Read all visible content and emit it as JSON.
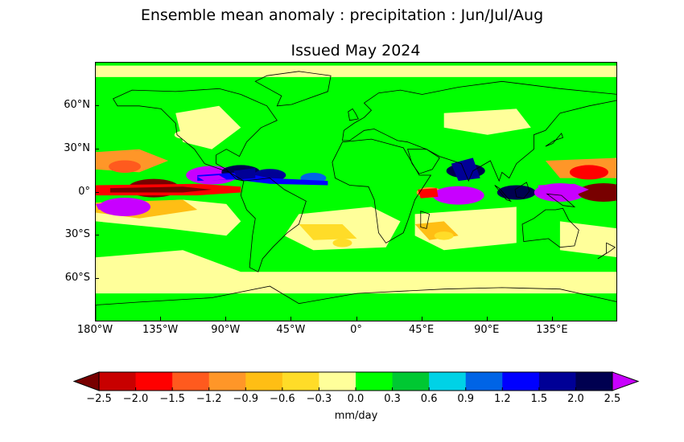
{
  "title": "Ensemble mean anomaly : precipitation : Jun/Jul/Aug",
  "subtitle": "Issued May 2024",
  "map": {
    "lat_ticks": [
      "60°N",
      "30°N",
      "0°",
      "30°S",
      "60°S"
    ],
    "lon_ticks": [
      "180°W",
      "135°W",
      "90°W",
      "45°W",
      "0°",
      "45°E",
      "90°E",
      "135°E"
    ],
    "ocean_color": "#00ff00",
    "coastline_color": "#000000"
  },
  "colorbar": {
    "tick_labels": [
      "−2.5",
      "−2.0",
      "−1.5",
      "−1.2",
      "−0.9",
      "−0.6",
      "−0.3",
      "0.0",
      "0.3",
      "0.6",
      "0.9",
      "1.2",
      "1.5",
      "2.0",
      "2.5"
    ],
    "colors": [
      "#c80000",
      "#ff0000",
      "#ff5a1e",
      "#ff9628",
      "#ffbe14",
      "#ffdc28",
      "#ffff9a",
      "#00ff00",
      "#00c832",
      "#00d2e6",
      "#0064e6",
      "#0000ff",
      "#000096",
      "#000050"
    ],
    "under_color": "#780000",
    "over_color": "#c800ff",
    "label": "mm/day"
  },
  "chart_data": {
    "type": "heatmap",
    "title": "Ensemble mean anomaly : precipitation : Jun/Jul/Aug",
    "subtitle": "Issued May 2024",
    "variable": "precipitation anomaly",
    "units": "mm/day",
    "season": "Jun/Jul/Aug",
    "levels": [
      -2.5,
      -2.0,
      -1.5,
      -1.2,
      -0.9,
      -0.6,
      -0.3,
      0.0,
      0.3,
      0.6,
      0.9,
      1.2,
      1.5,
      2.0,
      2.5
    ],
    "xlim": [
      -180,
      180
    ],
    "ylim": [
      -90,
      90
    ],
    "features": [
      {
        "lon": -140,
        "lat": 3,
        "value": -3.0
      },
      {
        "lon": -160,
        "lat": 18,
        "value": -1.5
      },
      {
        "lon": -100,
        "lat": 12,
        "value": 3.0
      },
      {
        "lon": -80,
        "lat": 14,
        "value": 2.0
      },
      {
        "lon": -60,
        "lat": 12,
        "value": 1.5
      },
      {
        "lon": -30,
        "lat": 10,
        "value": 1.0
      },
      {
        "lon": 50,
        "lat": 0,
        "value": -1.0
      },
      {
        "lon": 70,
        "lat": -2,
        "value": 3.0
      },
      {
        "lon": 75,
        "lat": 15,
        "value": 2.0
      },
      {
        "lon": 110,
        "lat": 0,
        "value": 2.0
      },
      {
        "lon": 140,
        "lat": 0,
        "value": 3.0
      },
      {
        "lon": 160,
        "lat": 14,
        "value": -2.0
      },
      {
        "lon": 170,
        "lat": 0,
        "value": -3.0
      },
      {
        "lon": -160,
        "lat": -10,
        "value": 3.0
      },
      {
        "lon": -10,
        "lat": -35,
        "value": -0.5
      },
      {
        "lon": 60,
        "lat": -30,
        "value": -0.5
      },
      {
        "lon": -120,
        "lat": 40,
        "value": -0.3
      }
    ]
  }
}
